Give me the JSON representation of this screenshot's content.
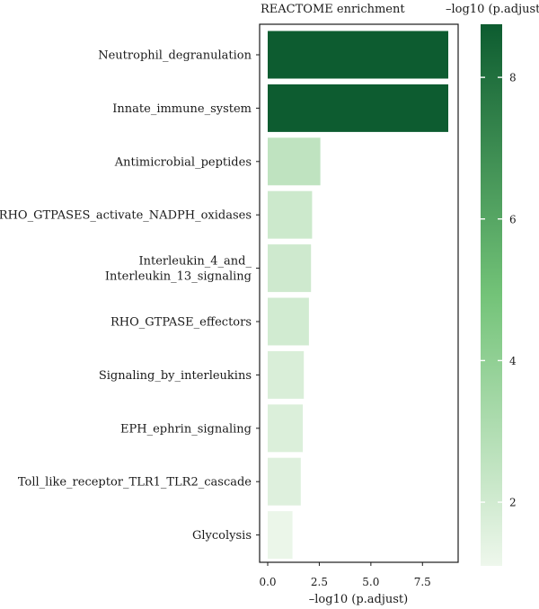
{
  "chart_data": {
    "type": "bar",
    "orientation": "horizontal",
    "title": "REACTOME enrichment",
    "xlabel": "–log10 (p.adjust)",
    "ylabel": "",
    "xlim": [
      -0.3,
      9.4
    ],
    "x_ticks": [
      "0.0",
      "2.5",
      "5.0",
      "7.5"
    ],
    "x_tick_values": [
      0,
      2.5,
      5,
      7.5
    ],
    "categories": [
      [
        "Neutrophil_degranulation"
      ],
      [
        "Innate_immune_system"
      ],
      [
        "Antimicrobial_peptides"
      ],
      [
        "RHO_GTPASES_activate_NADPH_oxidases"
      ],
      [
        "Interleukin_4_and_",
        "Interleukin_13_signaling"
      ],
      [
        "RHO_GTPASE_effectors"
      ],
      [
        "Signaling_by_interleukins"
      ],
      [
        "EPH_ephrin_signaling"
      ],
      [
        "Toll_like_receptor_TLR1_TLR2_cascade"
      ],
      [
        "Glycolysis"
      ]
    ],
    "values": [
      8.75,
      8.75,
      2.55,
      2.15,
      2.1,
      2.0,
      1.75,
      1.7,
      1.6,
      1.2
    ],
    "grid": false,
    "colorbar": {
      "title": "–log10 (p.adjust)",
      "min": 1.1,
      "max": 8.75,
      "ticks": [
        "2",
        "4",
        "6",
        "8"
      ],
      "tick_values": [
        2,
        4,
        6,
        8
      ],
      "color_low": "#eef7ec",
      "color_mid": "#73c378",
      "color_high": "#0d5c30",
      "placement": "right"
    }
  }
}
